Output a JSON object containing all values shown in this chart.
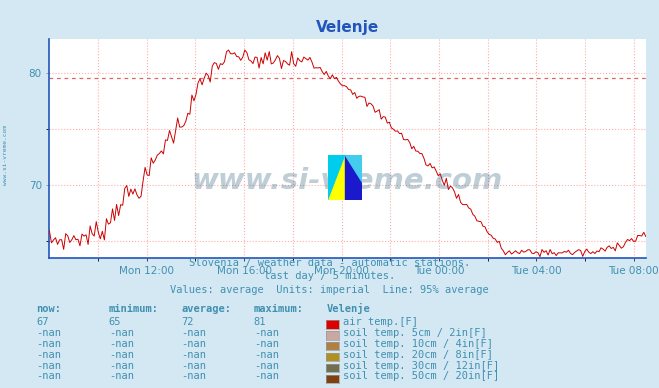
{
  "title": "Velenje",
  "bg_color": "#d4e8f4",
  "plot_bg_color": "#ffffff",
  "line_color": "#cc0000",
  "avg_line_color": "#dd6666",
  "grid_color": "#ffaaaa",
  "subtitle1": "Slovenia / weather data - automatic stations.",
  "subtitle2": "last day / 5 minutes.",
  "subtitle3": "Values: average  Units: imperial  Line: 95% average",
  "xlabel_ticks": [
    "Mon 12:00",
    "Mon 16:00",
    "Mon 20:00",
    "Tue 00:00",
    "Tue 04:00",
    "Tue 08:00"
  ],
  "yticks": [
    70,
    80
  ],
  "yavg_line": 79.5,
  "ylim": [
    63.5,
    83
  ],
  "watermark": "www.si-vreme.com",
  "left_label": "www.si-vreme.com",
  "table_headers": [
    "now:",
    "minimum:",
    "average:",
    "maximum:",
    "Velenje"
  ],
  "table_rows": [
    [
      "67",
      "65",
      "72",
      "81",
      "#dd0000",
      "air temp.[F]"
    ],
    [
      "-nan",
      "-nan",
      "-nan",
      "-nan",
      "#c8a8a0",
      "soil temp. 5cm / 2in[F]"
    ],
    [
      "-nan",
      "-nan",
      "-nan",
      "-nan",
      "#b08040",
      "soil temp. 10cm / 4in[F]"
    ],
    [
      "-nan",
      "-nan",
      "-nan",
      "-nan",
      "#b09020",
      "soil temp. 20cm / 8in[F]"
    ],
    [
      "-nan",
      "-nan",
      "-nan",
      "-nan",
      "#707050",
      "soil temp. 30cm / 12in[F]"
    ],
    [
      "-nan",
      "-nan",
      "-nan",
      "-nan",
      "#804010",
      "soil temp. 50cm / 20in[F]"
    ]
  ],
  "text_color": "#4090b0",
  "axis_color": "#2255bb",
  "title_color": "#2255bb"
}
